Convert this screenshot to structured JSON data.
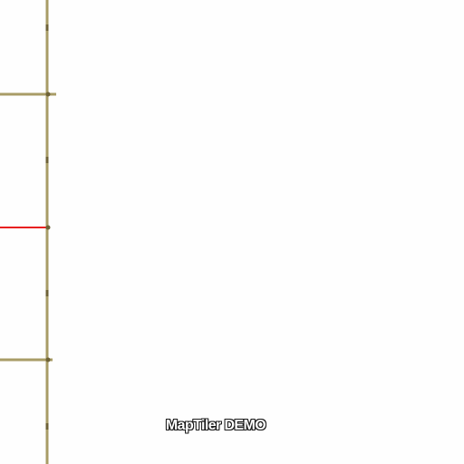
{
  "map": {
    "watermark": "MapTiler DEMO",
    "colors": {
      "background": "#fefefe",
      "boundary": "#a89c66",
      "road": "#e82020",
      "node": "#6e6237"
    }
  }
}
